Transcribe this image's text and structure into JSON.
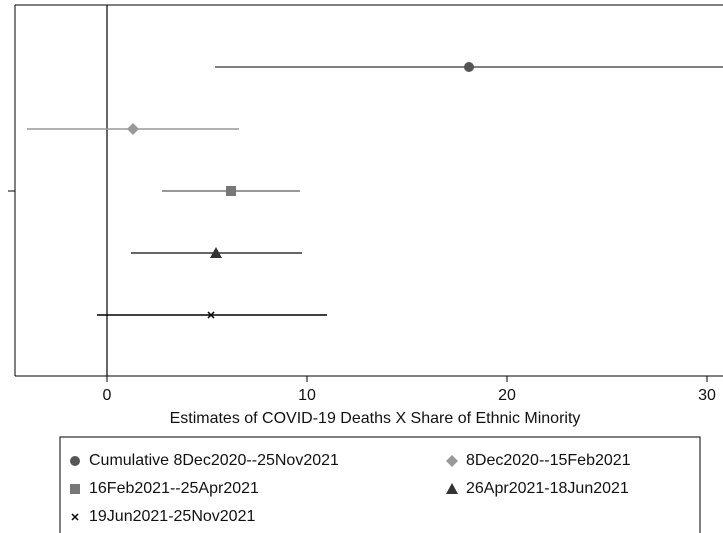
{
  "chart_data": {
    "type": "coefplot",
    "x_label": "Estimates of COVID-19 Deaths X Share of Ethnic Minority",
    "xlim": [
      -4.6,
      30.8
    ],
    "xticks": [
      0,
      10,
      20,
      30
    ],
    "xline": 0,
    "series": [
      {
        "name": "Cumulative 8Dec2020--25Nov2021",
        "color": "#555555",
        "marker": "circle",
        "value": 18.1,
        "ci": [
          5.4,
          31.5
        ]
      },
      {
        "name": "8Dec2020--15Feb2021",
        "color": "#999999",
        "marker": "diamond",
        "value": 1.3,
        "ci": [
          -4.0,
          6.6
        ]
      },
      {
        "name": "16Feb2021--25Apr2021",
        "color": "#777777",
        "marker": "square",
        "value": 6.2,
        "ci": [
          2.75,
          9.65
        ]
      },
      {
        "name": "26Apr2021-18Jun2021",
        "color": "#333333",
        "marker": "triangle",
        "value": 5.45,
        "ci": [
          1.2,
          9.75
        ]
      },
      {
        "name": "19Jun2021-25Nov2021",
        "color": "#000000",
        "marker": "x",
        "value": 5.2,
        "ci": [
          -0.5,
          11.0
        ]
      }
    ]
  }
}
